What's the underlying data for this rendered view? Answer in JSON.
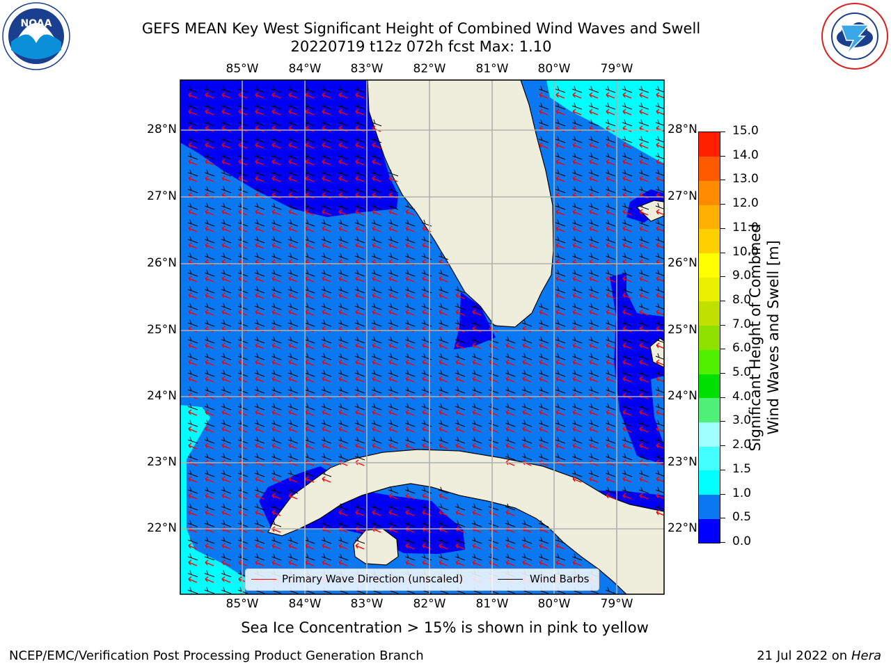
{
  "title": {
    "line1": "GEFS MEAN Key West Significant Height of Combined Wind Waves and Swell",
    "line2": "20220719 t12z 072h fcst   Max: 1.10"
  },
  "logos": {
    "left": {
      "text": "NOAA",
      "ring_text": "NATIONAL OCEANIC AND ATMOSPHERIC ADMINISTRATION · U.S. DEPARTMENT OF COMMERCE"
    },
    "right": {
      "ring_text": "NATIONAL WEATHER SERVICE"
    }
  },
  "map": {
    "lon_labels": [
      "85°W",
      "84°W",
      "83°W",
      "82°W",
      "81°W",
      "80°W",
      "79°W"
    ],
    "lat_labels": [
      "28°N",
      "27°N",
      "26°N",
      "25°N",
      "24°N",
      "23°N",
      "22°N"
    ],
    "colors": {
      "band_0_0_5": "#0000f2",
      "band_0_5_1_0": "#0a78f0",
      "band_1_0_1_5": "#00ffff",
      "land": "#efeedd",
      "wave_arrow": "#ff0000",
      "wind_barb": "#000000",
      "grid": "#b0b0b0"
    },
    "legend": {
      "wave_label": "Primary Wave Direction (unscaled)",
      "wind_label": "Wind Barbs"
    }
  },
  "colorbar": {
    "label_line1": "Significant Height of Combined",
    "label_line2": "Wind Waves and Swell [m]",
    "ticks": [
      "0.0",
      "0.5",
      "1.0",
      "1.5",
      "2.0",
      "3.0",
      "4.0",
      "5.0",
      "6.0",
      "7.0",
      "8.0",
      "9.0",
      "10.0",
      "11.0",
      "12.0",
      "13.0",
      "14.0",
      "15.0"
    ],
    "colors": [
      "#0000ff",
      "#0a78f0",
      "#00ffff",
      "#44ffff",
      "#a0ffff",
      "#50f078",
      "#00e000",
      "#50f000",
      "#90e000",
      "#c0e000",
      "#e8f000",
      "#ffff00",
      "#ffd000",
      "#ffb000",
      "#ff8c00",
      "#ff5a00",
      "#ff2000"
    ]
  },
  "subtitle": "Sea Ice Concentration > 15% is shown in pink to yellow",
  "footer": {
    "left": "NCEP/EMC/Verification Post Processing Product Generation Branch",
    "right_prefix": "21 Jul 2022 on ",
    "right_host": "Hera"
  }
}
